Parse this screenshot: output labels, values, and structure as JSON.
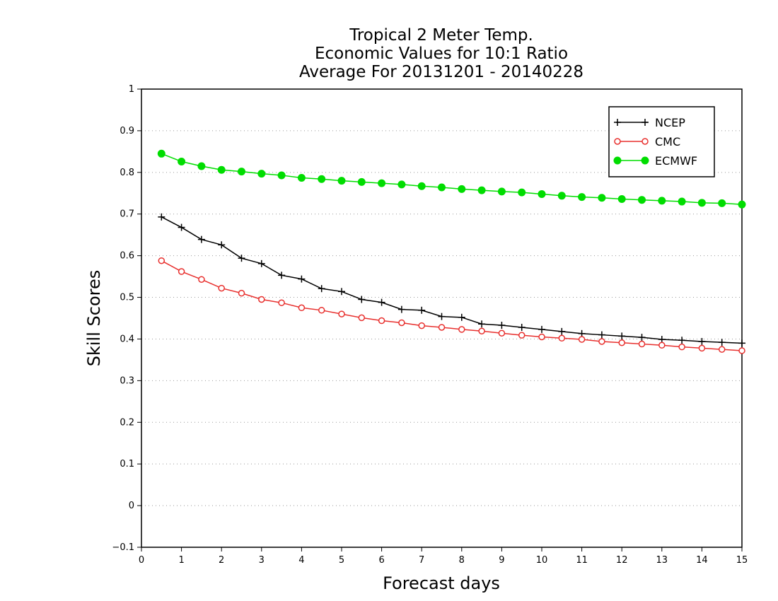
{
  "chart_data": {
    "type": "line",
    "title_lines": [
      "Tropical 2 Meter Temp.",
      "Economic Values for 10:1 Ratio",
      "Average For 20131201 - 20140228"
    ],
    "xlabel": "Forecast days",
    "ylabel": "Skill Scores",
    "xlim": [
      0,
      15
    ],
    "ylim": [
      -0.1,
      1
    ],
    "x_ticks": [
      "0",
      "1",
      "2",
      "3",
      "4",
      "5",
      "6",
      "7",
      "8",
      "9",
      "10",
      "11",
      "12",
      "13",
      "14",
      "15"
    ],
    "y_ticks": [
      "−0.1",
      "0",
      "0.1",
      "0.2",
      "0.3",
      "0.4",
      "0.5",
      "0.6",
      "0.7",
      "0.8",
      "0.9",
      "1"
    ],
    "grid": "horizontal dotted",
    "legend_position": "top-right",
    "x": [
      0.5,
      1,
      1.5,
      2,
      2.5,
      3,
      3.5,
      4,
      4.5,
      5,
      5.5,
      6,
      6.5,
      7,
      7.5,
      8,
      8.5,
      9,
      9.5,
      10,
      10.5,
      11,
      11.5,
      12,
      12.5,
      13,
      13.5,
      14,
      14.5,
      15
    ],
    "series": [
      {
        "name": "NCEP",
        "color": "#000000",
        "marker": "plus",
        "values": [
          0.693,
          0.668,
          0.639,
          0.626,
          0.594,
          0.581,
          0.553,
          0.544,
          0.521,
          0.514,
          0.495,
          0.488,
          0.471,
          0.469,
          0.454,
          0.452,
          0.436,
          0.433,
          0.428,
          0.423,
          0.418,
          0.413,
          0.41,
          0.407,
          0.404,
          0.399,
          0.397,
          0.394,
          0.392,
          0.39
        ]
      },
      {
        "name": "CMC",
        "color": "#e8302e",
        "marker": "open-circle",
        "values": [
          0.588,
          0.562,
          0.543,
          0.522,
          0.51,
          0.495,
          0.487,
          0.475,
          0.469,
          0.46,
          0.451,
          0.444,
          0.439,
          0.432,
          0.428,
          0.423,
          0.419,
          0.414,
          0.409,
          0.405,
          0.402,
          0.399,
          0.394,
          0.391,
          0.388,
          0.385,
          0.381,
          0.378,
          0.375,
          0.372
        ]
      },
      {
        "name": "ECMWF",
        "color": "#00dd00",
        "marker": "filled-circle",
        "values": [
          0.845,
          0.826,
          0.815,
          0.806,
          0.802,
          0.797,
          0.793,
          0.787,
          0.784,
          0.78,
          0.777,
          0.774,
          0.771,
          0.767,
          0.764,
          0.76,
          0.757,
          0.754,
          0.752,
          0.748,
          0.744,
          0.741,
          0.739,
          0.736,
          0.734,
          0.732,
          0.73,
          0.727,
          0.726,
          0.723
        ]
      }
    ]
  }
}
